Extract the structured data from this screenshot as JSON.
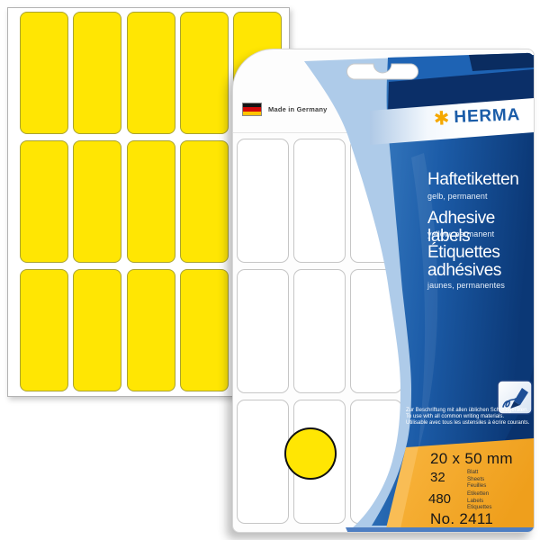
{
  "left_sheet": {
    "rows": 3,
    "columns": 5
  },
  "package": {
    "made_in": "Made in Germany",
    "brand_mark": "✱",
    "brand": "HERMA",
    "title_de": "Haftetiketten",
    "subtitle_de": "gelb, permanent",
    "title_en": "Adhesive labels",
    "subtitle_en": "yellow, permanent",
    "title_fr": "Étiquettes adhésives",
    "subtitle_fr": "jaunes, permanentes",
    "note_de": "Zur Beschriftung mit allen üblichen Schreibgeräten.",
    "note_en": "To use with all common writing materials.",
    "note_fr": "Utilisable avec tous les ustensiles à écrire courants.",
    "specs": {
      "size": "20 x 50 mm",
      "sheets_count": "32",
      "sheets_labels": [
        "Blatt",
        "Sheets",
        "Feuilles"
      ],
      "labels_count": "480",
      "labels_labels": [
        "Etiketten",
        "Labels",
        "Etiquettes"
      ],
      "item_no": "No. 2411"
    },
    "inner_sheet": {
      "rows": 3,
      "columns": 3
    }
  },
  "colors": {
    "label_yellow": "#ffe603",
    "brand_blue": "#1a5ca8",
    "brand_orange": "#f5a800",
    "panel_dark_blue": "#0b3876",
    "panel_light_blue": "#aecbe9",
    "spec_orange": "#f5a72e"
  }
}
